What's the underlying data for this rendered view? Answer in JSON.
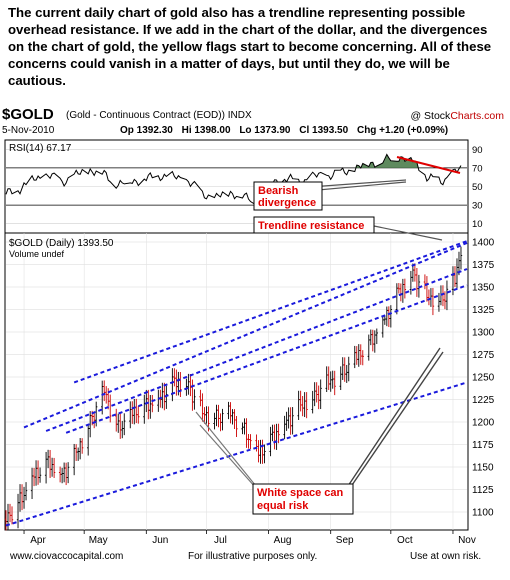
{
  "intro_text": "The current daily chart of gold also has a trendline representing possible overhead resistance.  If we add in the chart of the dollar, and the divergences on the chart of gold, the yellow flags start to become concerning.  All of these concerns could vanish in a matter of days, but until they do, we will be cautious.",
  "header": {
    "symbol": "$GOLD",
    "description": "(Gold - Continuous Contract (EOD)) INDX",
    "brand_prefix": "@ Stock",
    "brand_suffix": "Charts.com",
    "date": "5-Nov-2010",
    "open": "Op 1392.30",
    "high": "Hi 1398.00",
    "low": "Lo 1373.90",
    "close": "Cl 1393.50",
    "change": "Chg +1.20 (+0.09%)"
  },
  "colors": {
    "candle_up": "#000000",
    "candle_down": "#cc0000",
    "trendline": "#1a1adc",
    "annotation": "#e00000",
    "rsi_fill": "#5e8a5e"
  },
  "chart_data": [
    {
      "type": "line",
      "title": "RSI(14) 67.17",
      "ylim": [
        0,
        100
      ],
      "yticks": [
        10,
        30,
        50,
        70,
        90
      ],
      "reference_lines": [
        30,
        70
      ],
      "x": [
        "2010-03-23",
        "2010-03-30",
        "2010-04-06",
        "2010-04-13",
        "2010-04-20",
        "2010-04-27",
        "2010-05-04",
        "2010-05-11",
        "2010-05-18",
        "2010-05-25",
        "2010-06-01",
        "2010-06-08",
        "2010-06-15",
        "2010-06-22",
        "2010-06-29",
        "2010-07-06",
        "2010-07-13",
        "2010-07-20",
        "2010-07-27",
        "2010-08-03",
        "2010-08-10",
        "2010-08-17",
        "2010-08-24",
        "2010-08-31",
        "2010-09-07",
        "2010-09-14",
        "2010-09-21",
        "2010-09-28",
        "2010-10-05",
        "2010-10-12",
        "2010-10-19",
        "2010-10-26",
        "2010-11-02",
        "2010-11-05"
      ],
      "values": [
        42,
        48,
        58,
        62,
        55,
        62,
        68,
        63,
        52,
        56,
        58,
        62,
        60,
        56,
        42,
        38,
        44,
        38,
        35,
        55,
        58,
        55,
        61,
        62,
        65,
        70,
        75,
        78,
        82,
        78,
        60,
        55,
        66,
        67.17
      ]
    },
    {
      "type": "candlestick",
      "title": "$GOLD (Daily) 1393.50",
      "legend": [
        "$GOLD (Daily) 1393.50",
        "Volume undef"
      ],
      "ylim": [
        1080,
        1410
      ],
      "yticks": [
        1100,
        1125,
        1150,
        1175,
        1200,
        1225,
        1250,
        1275,
        1300,
        1325,
        1350,
        1375,
        1400
      ],
      "xtick_labels": [
        "Apr",
        "May",
        "Jun",
        "Jul",
        "Aug",
        "Sep",
        "Oct",
        "Nov"
      ],
      "xtick_dates": [
        "2010-04-01",
        "2010-05-01",
        "2010-06-01",
        "2010-07-01",
        "2010-08-01",
        "2010-09-01",
        "2010-10-01",
        "2010-11-01"
      ],
      "x_start": "2010-03-23",
      "x_end": "2010-11-08",
      "weekly_closes": {
        "x": [
          "2010-03-23",
          "2010-03-30",
          "2010-04-06",
          "2010-04-13",
          "2010-04-20",
          "2010-04-27",
          "2010-05-04",
          "2010-05-11",
          "2010-05-18",
          "2010-05-25",
          "2010-06-01",
          "2010-06-08",
          "2010-06-15",
          "2010-06-22",
          "2010-06-29",
          "2010-07-06",
          "2010-07-13",
          "2010-07-20",
          "2010-07-27",
          "2010-08-03",
          "2010-08-10",
          "2010-08-17",
          "2010-08-24",
          "2010-08-31",
          "2010-09-07",
          "2010-09-14",
          "2010-09-21",
          "2010-09-28",
          "2010-10-05",
          "2010-10-12",
          "2010-10-19",
          "2010-10-26",
          "2010-11-02",
          "2010-11-05"
        ],
        "values": [
          1092,
          1112,
          1140,
          1155,
          1140,
          1165,
          1200,
          1235,
          1192,
          1210,
          1218,
          1225,
          1245,
          1240,
          1210,
          1205,
          1210,
          1190,
          1165,
          1183,
          1200,
          1218,
          1228,
          1245,
          1255,
          1273,
          1290,
          1315,
          1345,
          1365,
          1340,
          1335,
          1358,
          1393.5
        ]
      },
      "trendlines": [
        {
          "x": [
            "2010-04-26",
            "2010-11-08"
          ],
          "y": [
            1244,
            1401
          ]
        },
        {
          "x": [
            "2010-04-01",
            "2010-11-08"
          ],
          "y": [
            1194,
            1399
          ]
        },
        {
          "x": [
            "2010-04-12",
            "2010-11-08"
          ],
          "y": [
            1190,
            1370
          ]
        },
        {
          "x": [
            "2010-04-22",
            "2010-11-08"
          ],
          "y": [
            1188,
            1352
          ]
        },
        {
          "x": [
            "2010-03-23",
            "2010-11-08"
          ],
          "y": [
            1085,
            1244
          ]
        }
      ],
      "annotations": [
        {
          "text": "Bearish divergence",
          "lines": [
            "Bearish",
            "divergence"
          ]
        },
        {
          "text": "Trendline resistance",
          "lines": [
            "Trendline resistance"
          ]
        },
        {
          "text": "White space can equal risk",
          "lines": [
            "White space can",
            "equal risk"
          ]
        }
      ]
    }
  ],
  "footer": {
    "website": "www.ciovaccocapital.com",
    "illustrative": "For illustrative purposes only.",
    "risk": "Use at own risk."
  }
}
